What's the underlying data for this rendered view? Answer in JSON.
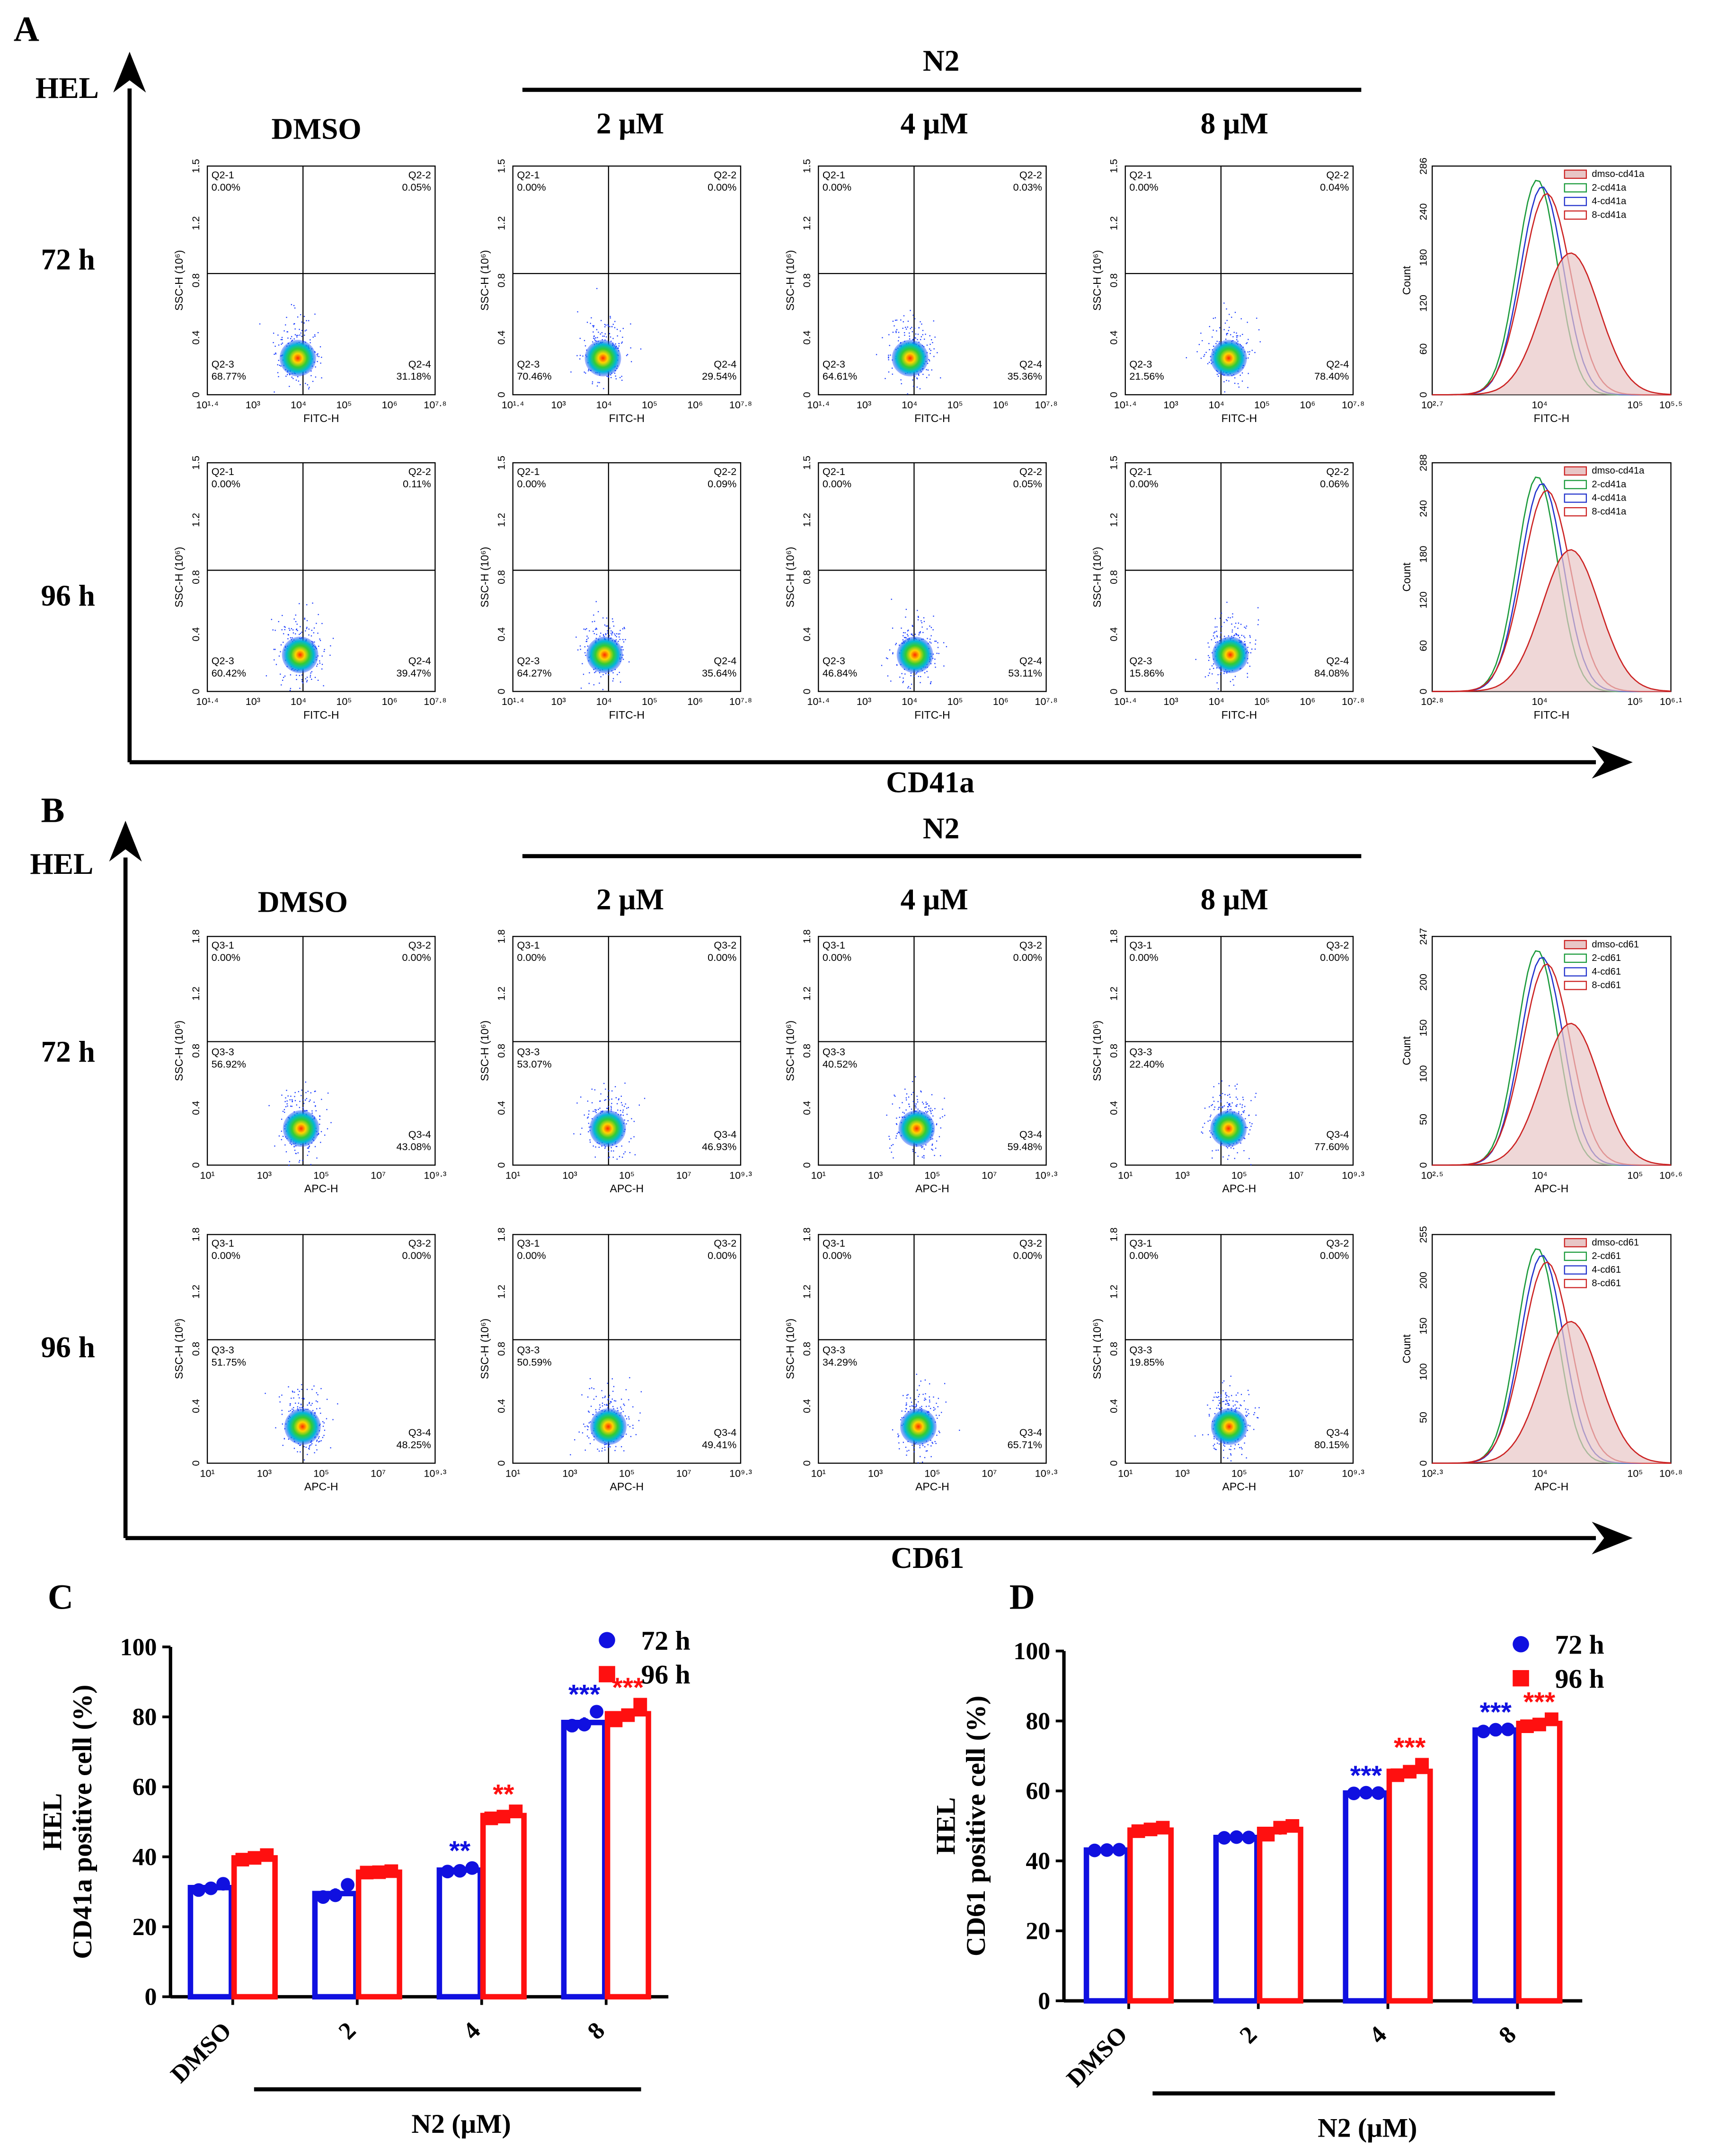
{
  "panelA": {
    "letter": "A",
    "cell_line": "HEL",
    "group_header": "N2",
    "columns": [
      "DMSO",
      "2 μM",
      "4 μM",
      "8 μM"
    ],
    "rows": [
      "72 h",
      "96 h"
    ],
    "axis_title": "CD41a",
    "quad_prefix": "Q2",
    "x_label": "FITC-H",
    "y_label": "SSC-H (10⁶)",
    "x_ticks": [
      "10¹·⁴",
      "10³",
      "10⁴",
      "10⁵",
      "10⁶",
      "10⁷·⁸"
    ],
    "y_ticks": [
      "0",
      "0.4",
      "0.8",
      "1.2",
      "1.5"
    ],
    "quadrants": [
      [
        [
          "0.00%",
          "0.05%",
          "68.77%",
          "31.18%"
        ],
        [
          "0.00%",
          "0.00%",
          "70.46%",
          "29.54%"
        ],
        [
          "0.00%",
          "0.03%",
          "64.61%",
          "35.36%"
        ],
        [
          "0.00%",
          "0.04%",
          "21.56%",
          "78.40%"
        ]
      ],
      [
        [
          "0.00%",
          "0.11%",
          "60.42%",
          "39.47%"
        ],
        [
          "0.00%",
          "0.09%",
          "64.27%",
          "35.64%"
        ],
        [
          "0.00%",
          "0.05%",
          "46.84%",
          "53.11%"
        ],
        [
          "0.00%",
          "0.06%",
          "15.86%",
          "84.08%"
        ]
      ]
    ],
    "histograms": [
      {
        "x_label": "FITC-H",
        "y_label": "Count",
        "y_ticks": [
          "0",
          "60",
          "120",
          "180",
          "240",
          "286"
        ],
        "x_ticks": [
          "10²·⁷",
          "10⁴",
          "10⁵",
          "10⁵·⁵"
        ],
        "legend": [
          "dmso-cd41a",
          "2-cd41a",
          "4-cd41a",
          "8-cd41a"
        ]
      },
      {
        "x_label": "FITC-H",
        "y_label": "Count",
        "y_ticks": [
          "0",
          "60",
          "120",
          "180",
          "240",
          "288"
        ],
        "x_ticks": [
          "10²·⁸",
          "10⁴",
          "10⁵",
          "10⁶·¹"
        ],
        "legend": [
          "dmso-cd41a",
          "2-cd41a",
          "4-cd41a",
          "8-cd41a"
        ]
      }
    ]
  },
  "panelB": {
    "letter": "B",
    "cell_line": "HEL",
    "group_header": "N2",
    "columns": [
      "DMSO",
      "2 μM",
      "4 μM",
      "8 μM"
    ],
    "rows": [
      "72 h",
      "96 h"
    ],
    "axis_title": "CD61",
    "quad_prefix": "Q3",
    "x_label": "APC-H",
    "y_label": "SSC-H (10⁶)",
    "x_ticks": [
      "10¹",
      "10³",
      "10⁵",
      "10⁷",
      "10⁹·³"
    ],
    "y_ticks": [
      "0",
      "0.4",
      "0.8",
      "1.2",
      "1.8"
    ],
    "quadrants": [
      [
        [
          "0.00%",
          "0.00%",
          "56.92%",
          "43.08%"
        ],
        [
          "0.00%",
          "0.00%",
          "53.07%",
          "46.93%"
        ],
        [
          "0.00%",
          "0.00%",
          "40.52%",
          "59.48%"
        ],
        [
          "0.00%",
          "0.00%",
          "22.40%",
          "77.60%"
        ]
      ],
      [
        [
          "0.00%",
          "0.00%",
          "51.75%",
          "48.25%"
        ],
        [
          "0.00%",
          "0.00%",
          "50.59%",
          "49.41%"
        ],
        [
          "0.00%",
          "0.00%",
          "34.29%",
          "65.71%"
        ],
        [
          "0.00%",
          "0.00%",
          "19.85%",
          "80.15%"
        ]
      ]
    ],
    "histograms": [
      {
        "x_label": "APC-H",
        "y_label": "Count",
        "y_ticks": [
          "0",
          "50",
          "100",
          "150",
          "200",
          "247"
        ],
        "x_ticks": [
          "10²·⁵",
          "10⁴",
          "10⁵",
          "10⁶·⁶"
        ],
        "legend": [
          "dmso-cd61",
          "2-cd61",
          "4-cd61",
          "8-cd61"
        ]
      },
      {
        "x_label": "APC-H",
        "y_label": "Count",
        "y_ticks": [
          "0",
          "50",
          "100",
          "150",
          "200",
          "255"
        ],
        "x_ticks": [
          "10²·³",
          "10⁴",
          "10⁵",
          "10⁶·⁸"
        ],
        "legend": [
          "dmso-cd61",
          "2-cd61",
          "4-cd61",
          "8-cd61"
        ]
      }
    ]
  },
  "colors": {
    "dmso": "#cc2222",
    "c2": "#1a9a3a",
    "c4": "#2233cc",
    "c8": "#cc2222",
    "bar72": "#1010e0",
    "bar96": "#ff1010",
    "fill": "#e8c6c6"
  },
  "chart_data": [
    {
      "type": "bar",
      "letter": "C",
      "title": "",
      "categories": [
        "DMSO",
        "2",
        "4",
        "8"
      ],
      "series": [
        {
          "name": "72 h",
          "values": [
            31.2,
            29.5,
            36.2,
            78.4
          ],
          "points": [
            [
              30.5,
              31.0,
              32.3
            ],
            [
              28.5,
              29.0,
              32.0
            ],
            [
              35.8,
              36.0,
              36.8
            ],
            [
              77.5,
              77.8,
              81.5
            ]
          ],
          "sig": [
            "",
            "",
            "**",
            "***"
          ]
        },
        {
          "name": "96 h",
          "values": [
            39.7,
            35.6,
            51.8,
            80.9
          ],
          "points": [
            [
              39.2,
              39.7,
              40.5
            ],
            [
              35.5,
              35.6,
              35.9
            ],
            [
              51.0,
              51.5,
              53.0
            ],
            [
              79.0,
              80.5,
              83.5
            ]
          ],
          "sig": [
            "",
            "",
            "**",
            "***"
          ]
        }
      ],
      "xlabel": "N2 (μM)",
      "ylabel_line1": "HEL",
      "ylabel_line2": "CD41a positive cell (%)",
      "ylim": [
        0,
        100
      ],
      "yticks": [
        "0",
        "20",
        "40",
        "60",
        "80",
        "100"
      ]
    },
    {
      "type": "bar",
      "letter": "D",
      "title": "",
      "categories": [
        "DMSO",
        "2",
        "4",
        "8"
      ],
      "series": [
        {
          "name": "72 h",
          "values": [
            43.1,
            46.7,
            59.4,
            77.4
          ],
          "points": [
            [
              43.0,
              43.1,
              43.2
            ],
            [
              46.6,
              46.8,
              46.7
            ],
            [
              59.3,
              59.5,
              59.4
            ],
            [
              77.0,
              77.5,
              77.6
            ]
          ],
          "sig": [
            "",
            "",
            "***",
            "***"
          ]
        },
        {
          "name": "96 h",
          "values": [
            48.8,
            49.0,
            65.6,
            79.3
          ],
          "points": [
            [
              48.5,
              49.0,
              49.5
            ],
            [
              47.5,
              49.5,
              50.0
            ],
            [
              64.5,
              65.5,
              67.5
            ],
            [
              78.5,
              79.0,
              80.5
            ]
          ],
          "sig": [
            "",
            "",
            "***",
            "***"
          ]
        }
      ],
      "xlabel": "N2 (μM)",
      "ylabel_line1": "HEL",
      "ylabel_line2": "CD61 positive cell (%)",
      "ylim": [
        0,
        100
      ],
      "yticks": [
        "0",
        "20",
        "40",
        "60",
        "80",
        "100"
      ]
    }
  ]
}
